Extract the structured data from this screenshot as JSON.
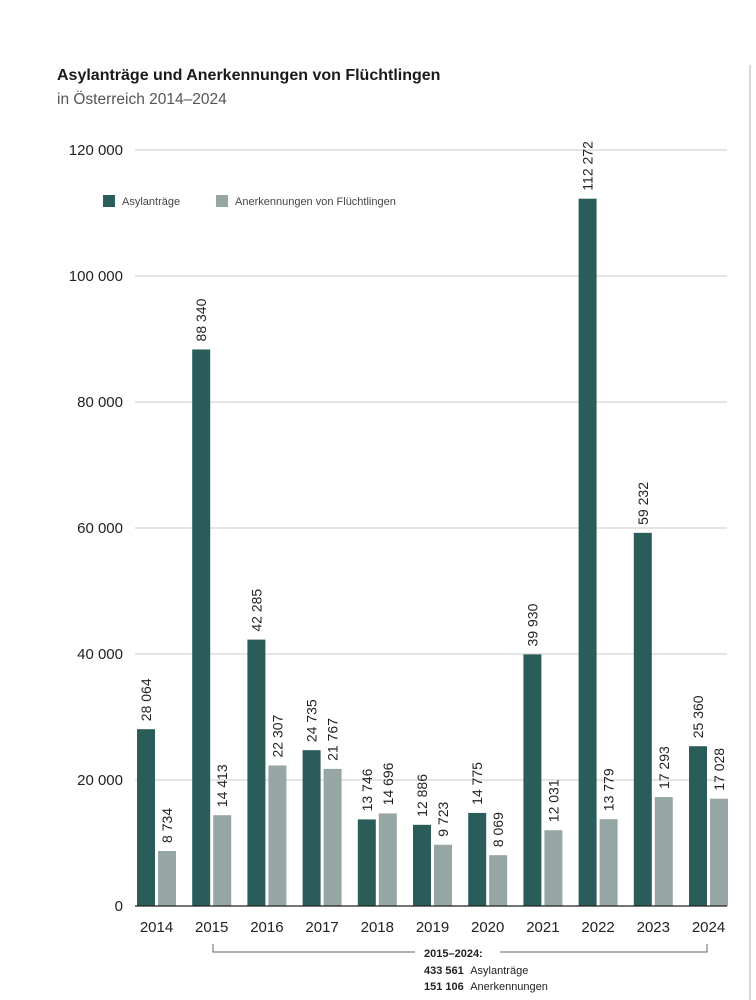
{
  "chart_data": {
    "type": "bar",
    "title": "Asylanträge und Anerkennungen von Flüchtlingen",
    "subtitle": "in Österreich 2014–2024",
    "categories": [
      "2014",
      "2015",
      "2016",
      "2017",
      "2018",
      "2019",
      "2020",
      "2021",
      "2022",
      "2023",
      "2024"
    ],
    "series": [
      {
        "name": "Asylanträge",
        "color": "#2a5d5a",
        "values": [
          28064,
          88340,
          42285,
          24735,
          13746,
          12886,
          14775,
          39930,
          112272,
          59232,
          25360
        ],
        "labels": [
          "28 064",
          "88 340",
          "42 285",
          "24 735",
          "13 746",
          "12 886",
          "14 775",
          "39 930",
          "112 272",
          "59 232",
          "25 360"
        ]
      },
      {
        "name": "Anerkennungen von Flüchtlingen",
        "color": "#95a6a4",
        "values": [
          8734,
          14413,
          22307,
          21767,
          14696,
          9723,
          8069,
          12031,
          13779,
          17293,
          17028
        ],
        "labels": [
          "8 734",
          "14 413",
          "22 307",
          "21 767",
          "14 696",
          "9 723",
          "8 069",
          "12 031",
          "13 779",
          "17 293",
          "17 028"
        ]
      }
    ],
    "ylim": [
      0,
      120000
    ],
    "yticks": [
      0,
      20000,
      40000,
      60000,
      80000,
      100000,
      120000
    ],
    "ytick_labels": [
      "0",
      "20 000",
      "40 000",
      "60 000",
      "80 000",
      "100 000",
      "120 000"
    ],
    "grid": true,
    "legend": "top-left",
    "annotation": {
      "period": "2015–2024:",
      "line1_value": "433 561",
      "line1_text": "Asylanträge",
      "line2_value": "151 106",
      "line2_text": "Anerkennungen"
    }
  }
}
